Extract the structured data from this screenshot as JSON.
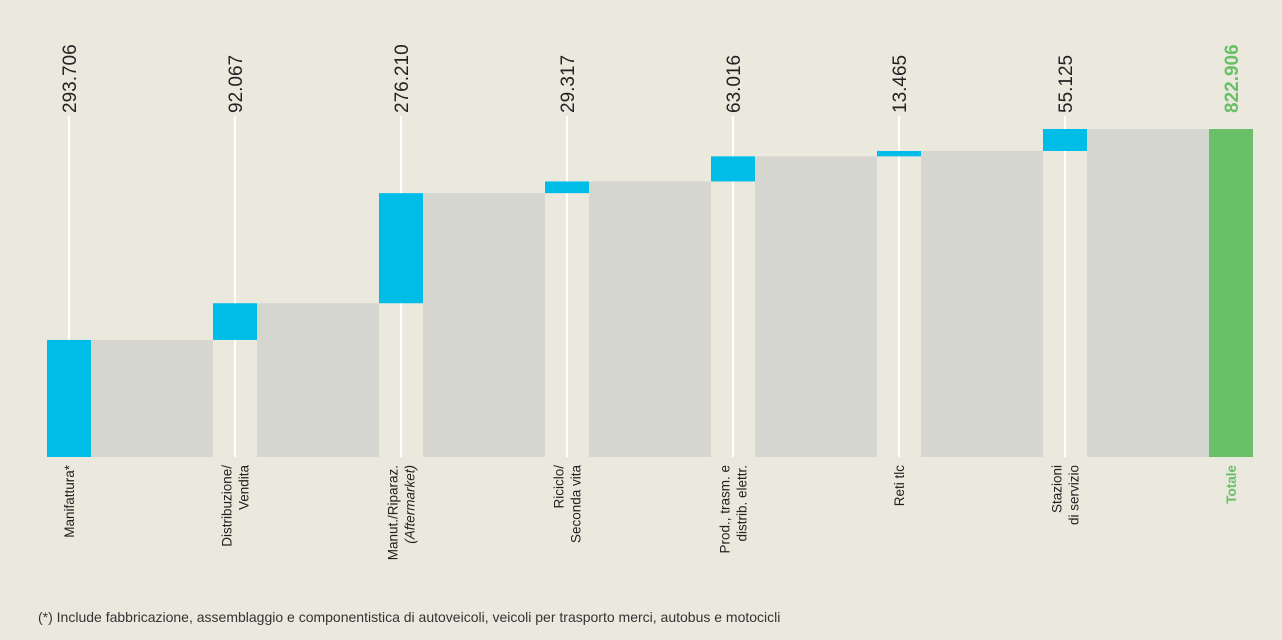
{
  "chart_data": {
    "type": "bar",
    "variant": "waterfall",
    "title": "",
    "xlabel": "",
    "ylabel": "",
    "categories": [
      [
        "Manifattura*"
      ],
      [
        "Distribuzione/",
        "Vendita"
      ],
      [
        "Manut./Riparaz.",
        "(Aftermarket)"
      ],
      [
        "Riciclo/",
        "Seconda vita"
      ],
      [
        "Prod., trasm. e",
        "distrib. elettr."
      ],
      [
        "Reti tlc"
      ],
      [
        "Stazioni",
        "di servizio"
      ],
      [
        "Totale"
      ]
    ],
    "italic_lines": [
      [],
      [],
      [
        1
      ],
      [],
      [],
      [],
      [],
      []
    ],
    "value_labels": [
      "293.706",
      "92.067",
      "276.210",
      "29.317",
      "63.016",
      "13.465",
      "55.125",
      "822.906"
    ],
    "values": [
      293706,
      92067,
      276210,
      29317,
      63016,
      13465,
      55125,
      822906
    ],
    "is_total": [
      false,
      false,
      false,
      false,
      false,
      false,
      false,
      true
    ],
    "ylim": [
      0,
      822906
    ],
    "grid": false,
    "legend": "none",
    "colors": {
      "increment": "#00bde8",
      "total": "#6abf69",
      "total_text": "#6abf69",
      "connector": "#d6d6d1",
      "guide_line": "#ffffff",
      "text": "#222222",
      "background": "#ebe9de"
    }
  },
  "footnote": "(*) Include fabbricazione, assemblaggio e componentistica di autoveicoli, veicoli per trasporto merci, autobus e motocicli"
}
